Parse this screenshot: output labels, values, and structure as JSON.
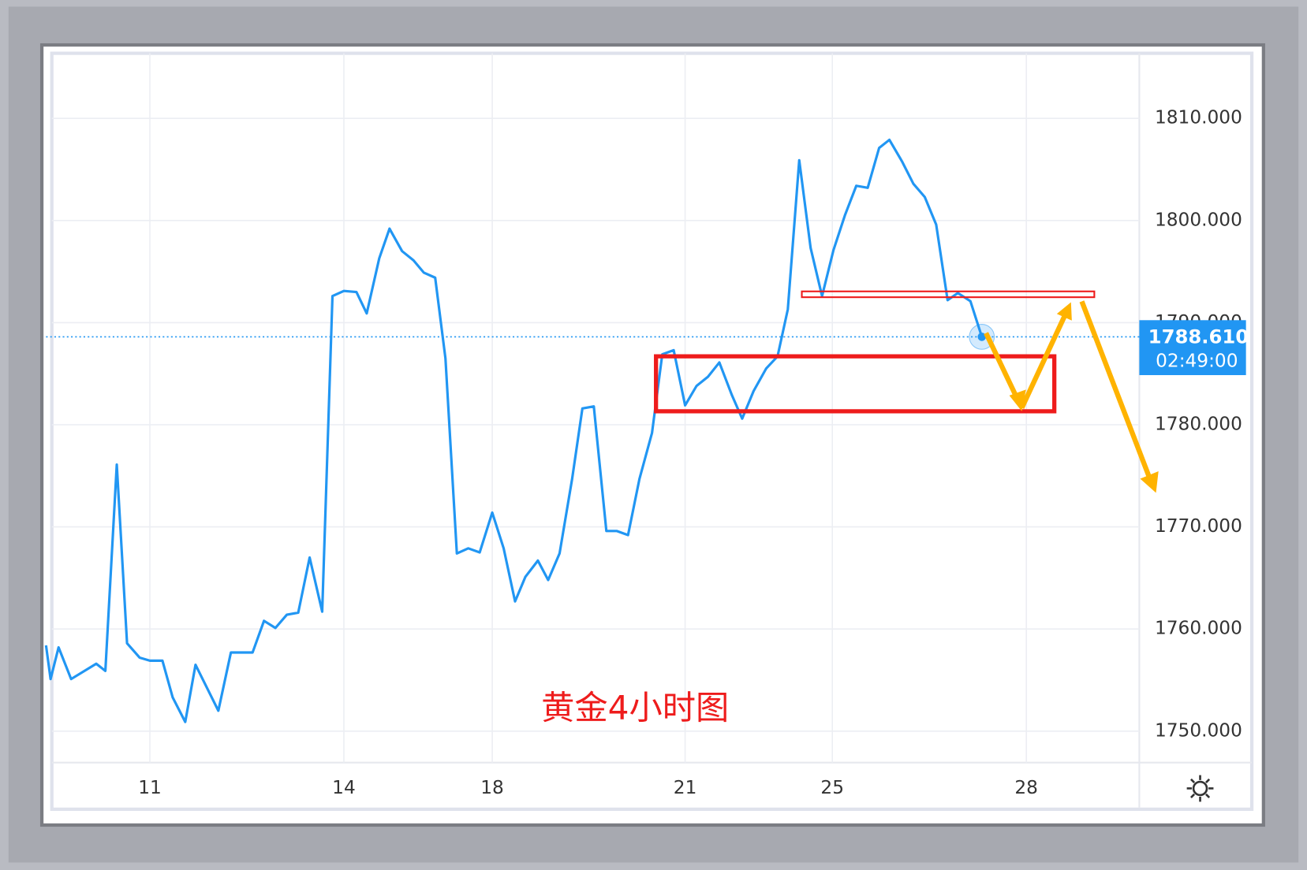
{
  "chart_data": {
    "type": "line",
    "annotation": "黄金4小时图",
    "color": "#2196f3",
    "x": [
      0,
      0.4,
      1.1,
      2.2,
      4.4,
      5.2,
      6.2,
      7.1,
      8.2,
      9.1,
      10.2,
      11.1,
      12.2,
      13.1,
      15.1,
      16.2,
      18.1,
      19.1,
      20.1,
      21.1,
      22.1,
      23.1,
      24.2,
      25.1,
      26.1,
      27.2,
      28.1,
      29.2,
      30.1,
      31.2,
      32.2,
      33.1,
      34.1,
      35,
      36,
      37,
      38,
      39.1,
      40.1,
      41.1,
      42,
      43.1,
      44,
      45,
      46.1,
      47,
      48,
      49.1,
      50,
      51,
      52,
      53.1,
      54,
      55,
      56,
      57,
      58,
      59,
      60.1,
      61,
      62,
      63.1,
      64.1,
      65,
      66,
      67,
      68,
      69,
      70,
      71,
      72,
      73,
      73.9,
      75,
      76,
      77,
      78,
      79,
      79.9,
      81,
      82
    ],
    "values": [
      1758.4,
      1755.1,
      1758.2,
      1755.1,
      1756.6,
      1755.9,
      1776.1,
      1758.6,
      1757.2,
      1756.9,
      1756.9,
      1753.3,
      1750.9,
      1756.5,
      1752.0,
      1757.7,
      1757.7,
      1760.8,
      1760.1,
      1761.4,
      1761.6,
      1767.0,
      1761.7,
      1792.6,
      1793.1,
      1793.0,
      1790.9,
      1796.3,
      1799.2,
      1797.0,
      1796.1,
      1794.9,
      1794.4,
      1786.5,
      1767.4,
      1767.9,
      1767.5,
      1771.4,
      1767.9,
      1762.7,
      1765.1,
      1766.7,
      1764.8,
      1767.4,
      1774.7,
      1781.6,
      1781.8,
      1769.6,
      1769.6,
      1769.2,
      1774.7,
      1779.2,
      1786.9,
      1787.3,
      1781.9,
      1783.8,
      1784.7,
      1786.1,
      1782.9,
      1780.6,
      1783.3,
      1785.5,
      1786.7,
      1791.3,
      1805.9,
      1797.3,
      1792.6,
      1797.1,
      1800.5,
      1803.4,
      1803.2,
      1807.1,
      1807.9,
      1805.8,
      1803.6,
      1802.3,
      1799.6,
      1792.2,
      1792.9,
      1792.1,
      1788.61
    ],
    "xlim": [
      0,
      95.8
    ],
    "ylim": [
      1747,
      1816.7
    ],
    "xticks": [
      {
        "value": 9.1,
        "label": "11"
      },
      {
        "value": 26.1,
        "label": "14"
      },
      {
        "value": 39.1,
        "label": "18"
      },
      {
        "value": 56,
        "label": "21"
      },
      {
        "value": 68.9,
        "label": "25"
      },
      {
        "value": 85.9,
        "label": "28"
      }
    ],
    "yticks": [
      {
        "value": 1750,
        "label": "1750.000"
      },
      {
        "value": 1760,
        "label": "1760.000"
      },
      {
        "value": 1770,
        "label": "1770.000"
      },
      {
        "value": 1780,
        "label": "1780.000"
      },
      {
        "value": 1790,
        "label": "1790.000"
      },
      {
        "value": 1800,
        "label": "1800.000"
      },
      {
        "value": 1810,
        "label": "1810.000"
      }
    ],
    "grid": true,
    "last_price": {
      "value": 1788.61,
      "label": "1788.610"
    },
    "countdown": "02:49:00"
  }
}
